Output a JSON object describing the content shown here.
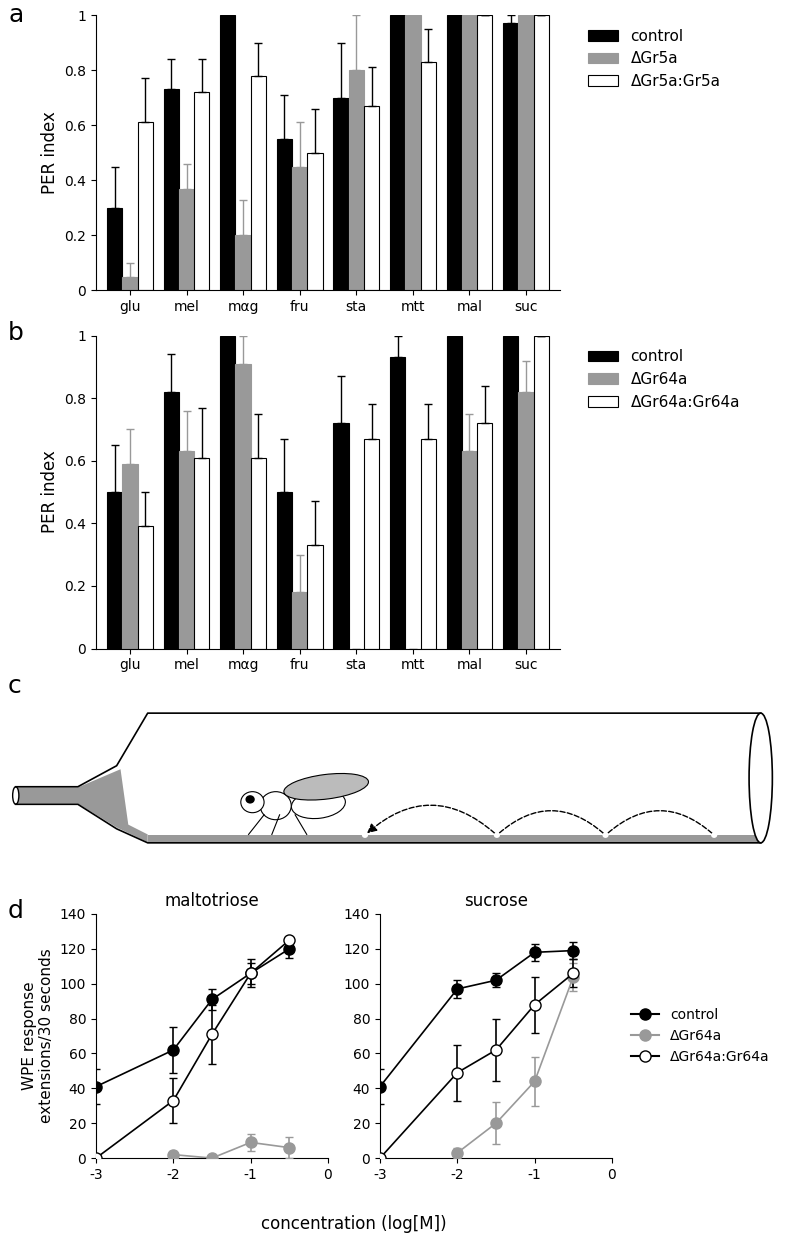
{
  "chart_data": [
    {
      "type": "bar",
      "panel_label": "a",
      "ylabel": "PER index",
      "categories": [
        "glu",
        "mel",
        "mαg",
        "fru",
        "sta",
        "mtt",
        "mal",
        "suc"
      ],
      "ylim": [
        0,
        1
      ],
      "yticks": [
        0,
        0.2,
        0.4,
        0.6,
        0.8,
        1
      ],
      "legend": "upper left",
      "series": [
        {
          "name": "control",
          "color": "#000000",
          "values": [
            0.3,
            0.73,
            1.0,
            0.55,
            0.7,
            1.0,
            1.0,
            0.97
          ],
          "errors": [
            0.15,
            0.11,
            0.0,
            0.16,
            0.2,
            0.0,
            0.0,
            0.03
          ]
        },
        {
          "name": "ΔGr5a",
          "color": "#999999",
          "values": [
            0.05,
            0.37,
            0.2,
            0.45,
            0.8,
            1.0,
            1.0,
            1.0
          ],
          "errors": [
            0.05,
            0.09,
            0.13,
            0.16,
            0.2,
            0.0,
            0.0,
            0.0
          ]
        },
        {
          "name": "ΔGr5a:Gr5a",
          "color": "#ffffff",
          "values": [
            0.61,
            0.72,
            0.78,
            0.5,
            0.67,
            0.83,
            1.0,
            1.0
          ],
          "errors": [
            0.16,
            0.12,
            0.12,
            0.16,
            0.14,
            0.12,
            0.0,
            0.0
          ]
        }
      ]
    },
    {
      "type": "bar",
      "panel_label": "b",
      "ylabel": "PER index",
      "categories": [
        "glu",
        "mel",
        "mαg",
        "fru",
        "sta",
        "mtt",
        "mal",
        "suc"
      ],
      "ylim": [
        0,
        1
      ],
      "yticks": [
        0,
        0.2,
        0.4,
        0.6,
        0.8,
        1
      ],
      "legend": "upper left",
      "series": [
        {
          "name": "control",
          "color": "#000000",
          "values": [
            0.5,
            0.82,
            1.0,
            0.5,
            0.72,
            0.93,
            1.0,
            1.0
          ],
          "errors": [
            0.15,
            0.12,
            0.0,
            0.17,
            0.15,
            0.07,
            0.0,
            0.0
          ]
        },
        {
          "name": "ΔGr64a",
          "color": "#999999",
          "values": [
            0.59,
            0.63,
            0.91,
            0.18,
            0,
            0,
            0.63,
            0.82
          ],
          "errors": [
            0.11,
            0.13,
            0.09,
            0.12,
            0,
            0,
            0.12,
            0.1
          ]
        },
        {
          "name": "ΔGr64a:Gr64a",
          "color": "#ffffff",
          "values": [
            0.39,
            0.61,
            0.61,
            0.33,
            0.67,
            0.67,
            0.72,
            1.0
          ],
          "errors": [
            0.11,
            0.16,
            0.14,
            0.14,
            0.11,
            0.11,
            0.12,
            0.0
          ]
        }
      ]
    },
    {
      "type": "diagram",
      "panel_label": "c"
    },
    {
      "type": "line",
      "panel_label": "d",
      "title": "maltotriose",
      "ylabel": "WPE response\nextensions/30 seconds",
      "xlabel": "concentration (log[M])",
      "x": [
        -3,
        -2,
        -1.5,
        -1,
        -0.5
      ],
      "xlim": [
        -3,
        0
      ],
      "xticks": [
        -3,
        -2,
        -1,
        0
      ],
      "ylim": [
        0,
        140
      ],
      "yticks": [
        0,
        20,
        40,
        60,
        80,
        100,
        120,
        140
      ],
      "marker": "o",
      "series": [
        {
          "name": "control",
          "color": "#000000",
          "values": [
            41,
            62,
            91,
            106,
            120
          ],
          "errors": [
            10,
            13,
            6,
            8,
            5
          ]
        },
        {
          "name": "ΔGr64a",
          "color": "#999999",
          "values": [
            null,
            2,
            0,
            9,
            6
          ],
          "errors": [
            null,
            2,
            1,
            5,
            6
          ]
        },
        {
          "name": "ΔGr64a:Gr64a",
          "color": "#ffffff",
          "values": [
            0,
            33,
            71,
            106,
            125
          ],
          "errors": [
            0,
            13,
            17,
            6,
            2
          ]
        }
      ]
    },
    {
      "type": "line",
      "title": "sucrose",
      "x": [
        -3,
        -2,
        -1.5,
        -1,
        -0.5
      ],
      "xlim": [
        -3,
        0
      ],
      "xticks": [
        -3,
        -2,
        -1,
        0
      ],
      "ylim": [
        0,
        140
      ],
      "yticks": [
        0,
        20,
        40,
        60,
        80,
        100,
        120,
        140
      ],
      "marker": "o",
      "legend": "center left",
      "series": [
        {
          "name": "control",
          "color": "#000000",
          "values": [
            41,
            97,
            102,
            118,
            119
          ],
          "errors": [
            10,
            5,
            4,
            5,
            5
          ]
        },
        {
          "name": "ΔGr64a",
          "color": "#999999",
          "values": [
            null,
            3,
            20,
            44,
            104
          ],
          "errors": [
            null,
            3,
            12,
            14,
            8
          ]
        },
        {
          "name": "ΔGr64a:Gr64a",
          "color": "#ffffff",
          "values": [
            0,
            49,
            62,
            88,
            106
          ],
          "errors": [
            0,
            16,
            18,
            16,
            8
          ]
        }
      ]
    }
  ]
}
